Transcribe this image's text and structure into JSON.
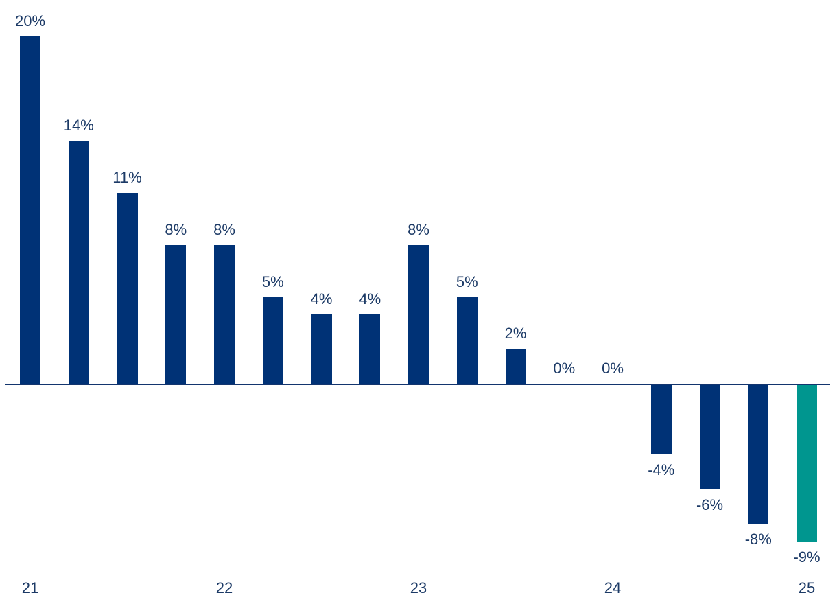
{
  "chart_data": {
    "type": "bar",
    "title": "",
    "xlabel": "",
    "ylabel": "",
    "values": [
      20,
      14,
      11,
      8,
      8,
      5,
      4,
      4,
      8,
      5,
      2,
      0,
      0,
      -4,
      -6,
      -8,
      -9
    ],
    "labels": [
      "20%",
      "14%",
      "11%",
      "8%",
      "8%",
      "5%",
      "4%",
      "4%",
      "8%",
      "5%",
      "2%",
      "0%",
      "0%",
      "-4%",
      "-6%",
      "-8%",
      "-9%"
    ],
    "x_ticks": [
      {
        "index": 0,
        "label": "21"
      },
      {
        "index": 4,
        "label": "22"
      },
      {
        "index": 8,
        "label": "23"
      },
      {
        "index": 12,
        "label": "24"
      },
      {
        "index": 16,
        "label": "25"
      }
    ],
    "highlight_index": 16,
    "bar_color": "#003276",
    "highlight_color": "#00968f",
    "axis_color": "#13356e",
    "text_color": "#1c3a66",
    "ylim": [
      -9,
      20
    ],
    "grid": false,
    "legend": false,
    "value_unit": "%"
  }
}
